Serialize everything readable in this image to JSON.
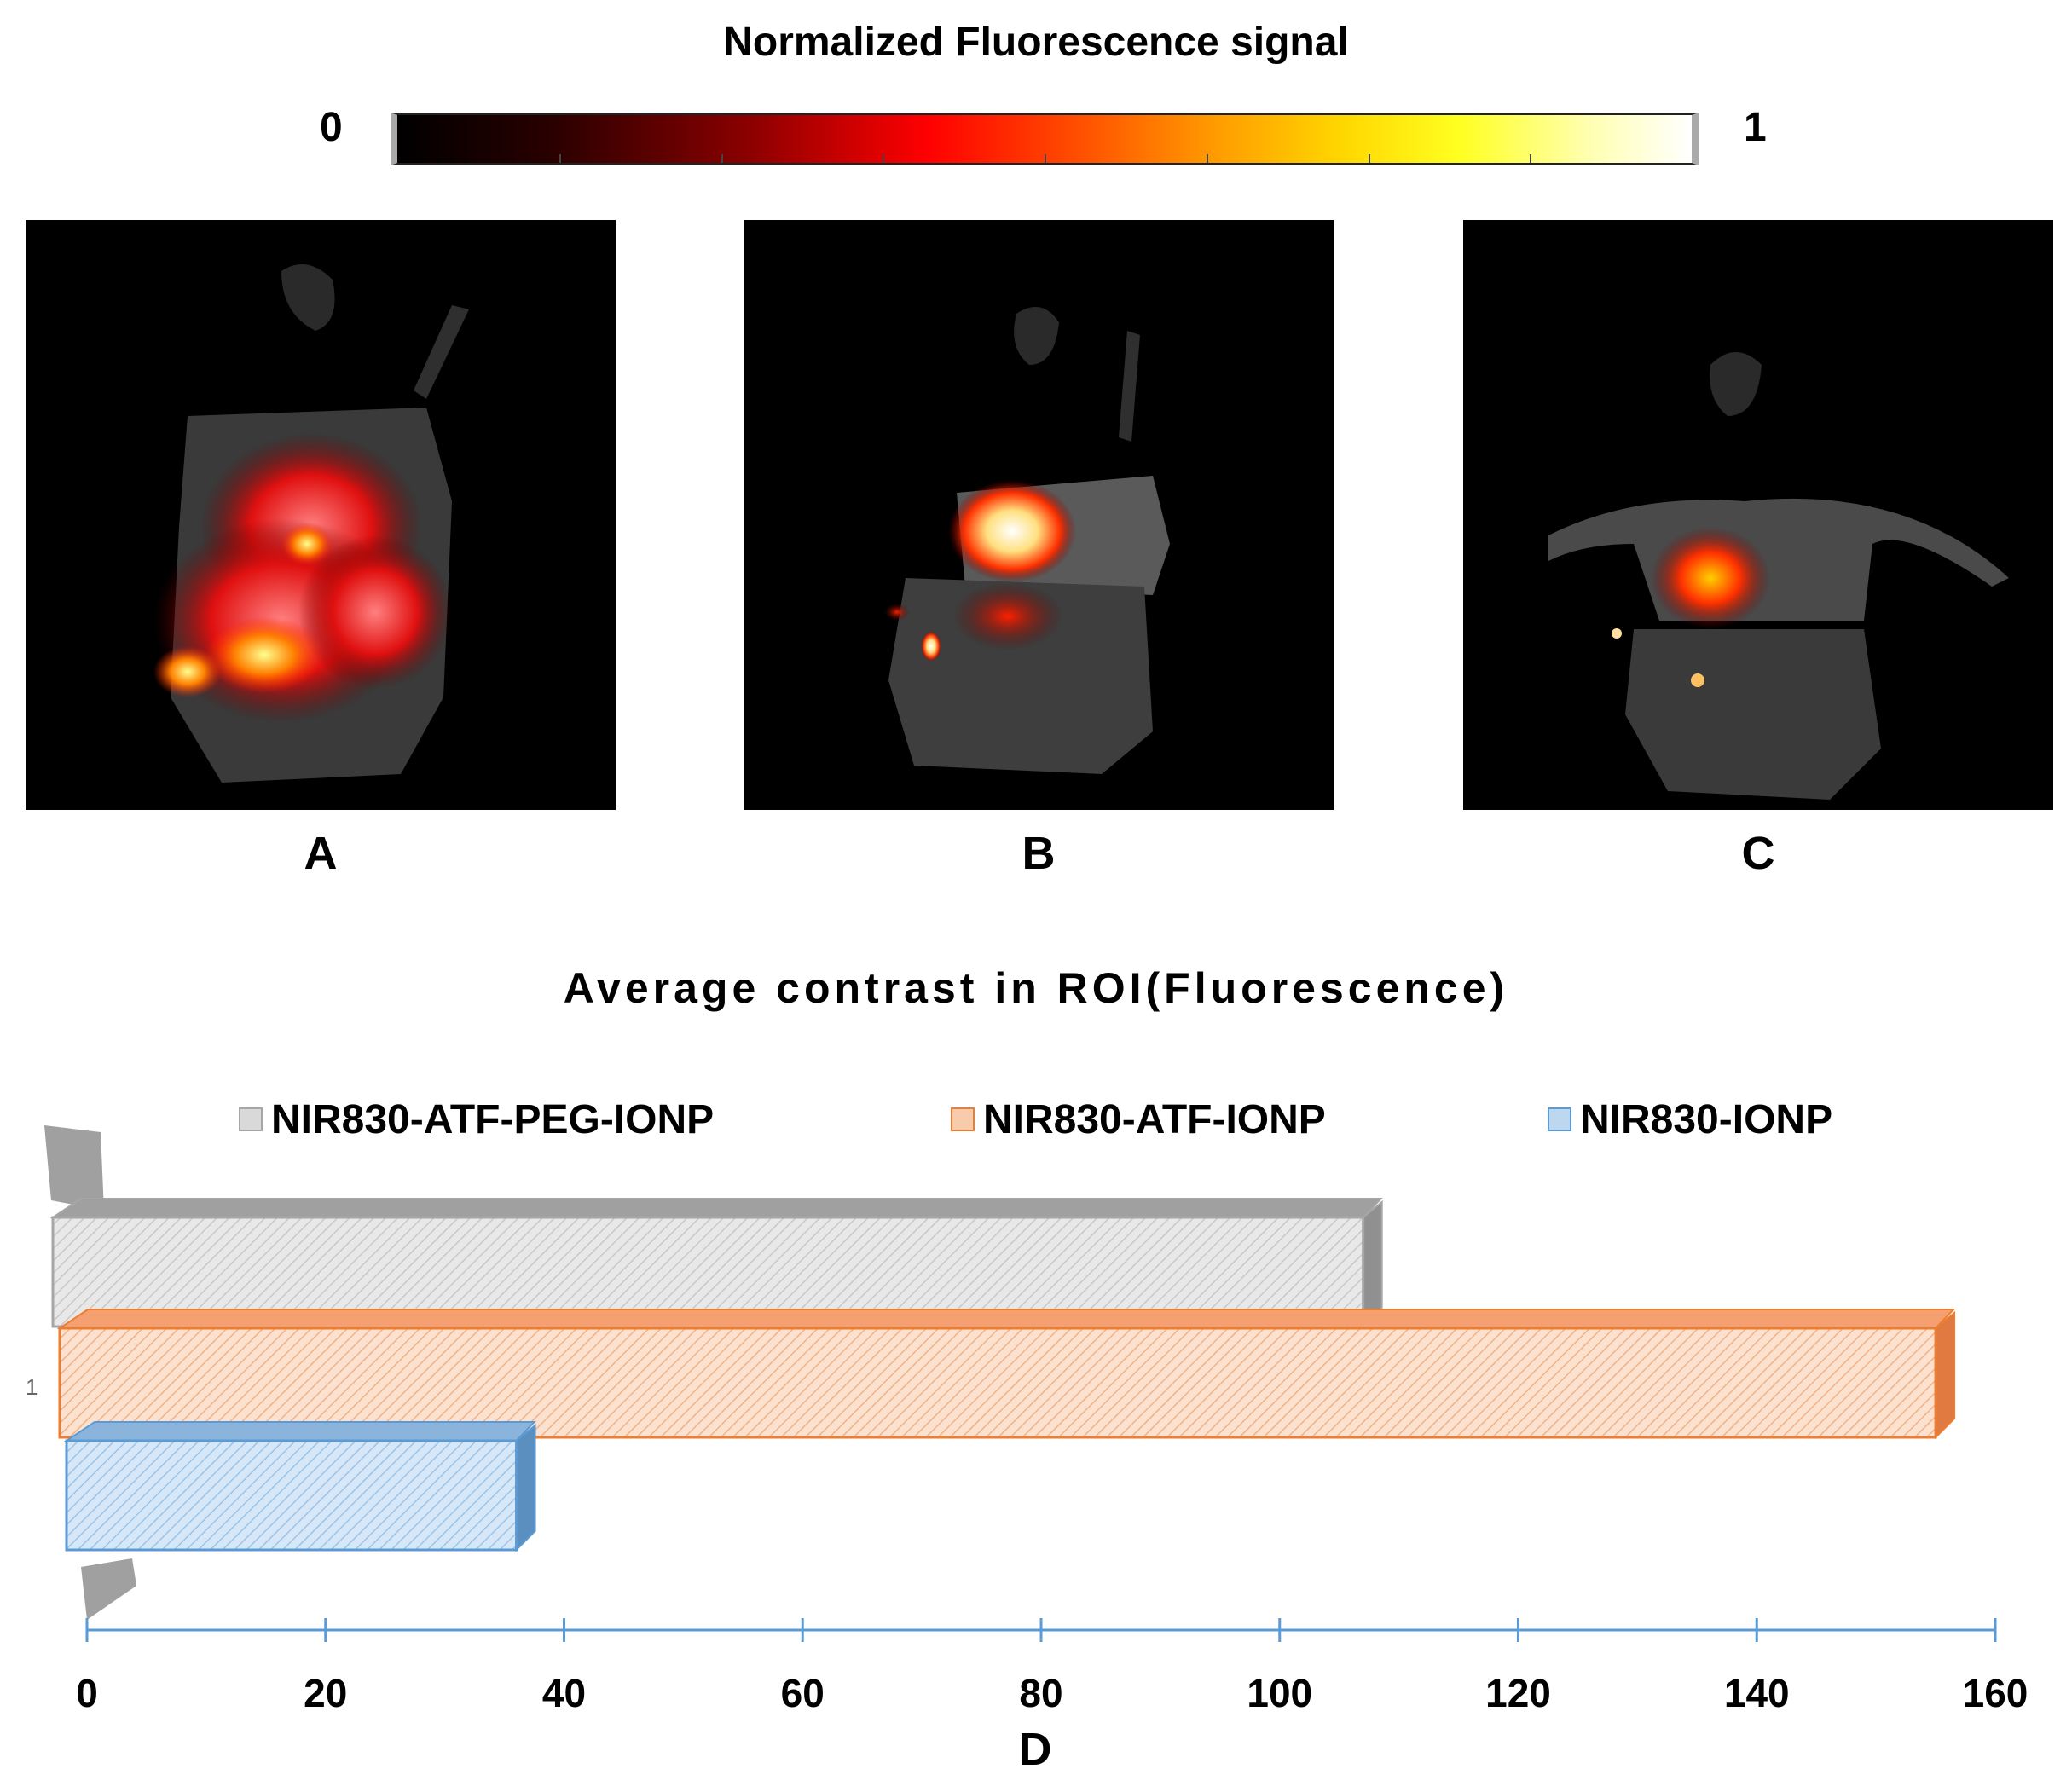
{
  "colorbar": {
    "title": "Normalized Fluorescence signal",
    "min_label": "0",
    "max_label": "1"
  },
  "panels": [
    {
      "label": "A",
      "icon": "fluorescence-image-icon"
    },
    {
      "label": "B",
      "icon": "fluorescence-image-icon"
    },
    {
      "label": "C",
      "icon": "fluorescence-image-icon"
    }
  ],
  "chart_data": {
    "type": "bar",
    "orientation": "horizontal",
    "title": "Average contrast in ROI(Fluorescence)",
    "categories": [
      "1"
    ],
    "series": [
      {
        "name": "NIR830-ATF-PEG-IONP",
        "values": [
          107
        ],
        "color": "#d9d9d9",
        "edge": "#a6a6a6"
      },
      {
        "name": "NIR830-ATF-IONP",
        "values": [
          155
        ],
        "color": "#f8cbad",
        "edge": "#ed7d31"
      },
      {
        "name": "NIR830-IONP",
        "values": [
          36
        ],
        "color": "#bdd7ee",
        "edge": "#5b9bd5"
      }
    ],
    "xlim": [
      0,
      160
    ],
    "xticks": [
      "0",
      "20",
      "40",
      "60",
      "80",
      "100",
      "120",
      "140",
      "160"
    ],
    "xlabel": "D",
    "legend_position": "top",
    "axis_color": "#5b9bd5"
  }
}
